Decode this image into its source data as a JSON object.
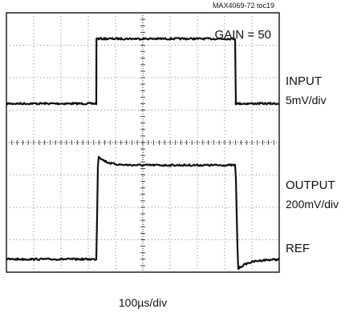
{
  "chart_data": {
    "type": "line",
    "figure_id": "MAX4069-72 toc19",
    "gain_annotation": "GAIN = 50",
    "xlabel": "100µs/div",
    "grid": true,
    "divisions": {
      "x": 10,
      "y": 8
    },
    "x_unit_per_div": "100µs",
    "x": [
      0,
      3.3,
      3.3,
      8.4,
      8.4,
      10
    ],
    "series": [
      {
        "name": "INPUT",
        "scale": "5mV/div",
        "color": "#111111",
        "y": [
          5.2,
          5.2,
          7.2,
          7.2,
          5.2,
          5.2
        ]
      },
      {
        "name": "OUTPUT",
        "scale": "200mV/div",
        "color": "#111111",
        "y": [
          0.4,
          0.4,
          3.6,
          3.3,
          0.4,
          0.4
        ],
        "settle_peak_div": 3.6,
        "settled_level_div": 3.3,
        "undershoot_div": 0.1
      }
    ],
    "reference_label": "REF",
    "reference_level_div": 0.4
  }
}
